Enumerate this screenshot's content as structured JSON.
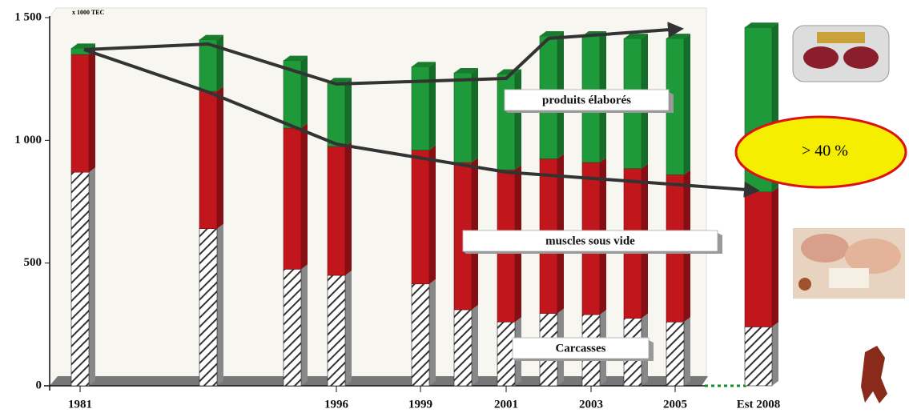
{
  "chart_data": {
    "type": "bar",
    "stacked": true,
    "y_label": "x 1000 TEC",
    "annotation": "> 40 %",
    "categories": [
      "1981",
      null,
      null,
      "1996",
      "1999",
      null,
      "2001",
      null,
      "2003",
      null,
      "2005",
      "Est 2008"
    ],
    "series": [
      {
        "name": "Carcasses",
        "color": "#333333",
        "values": [
          870,
          640,
          475,
          450,
          415,
          310,
          260,
          295,
          290,
          275,
          260,
          240
        ]
      },
      {
        "name": "muscles sous vide",
        "color": "#c0161c",
        "values": [
          480,
          560,
          575,
          525,
          545,
          600,
          620,
          630,
          620,
          610,
          600,
          550
        ]
      },
      {
        "name": "produits élaborés",
        "color": "#1f9a3a",
        "values": [
          25,
          210,
          275,
          260,
          340,
          365,
          390,
          500,
          515,
          530,
          555,
          670
        ]
      }
    ],
    "ylim": [
      0,
      1500
    ],
    "yticks": [
      0,
      500,
      {
        "value": 1000,
        "label": "1 000"
      },
      {
        "value": 1500,
        "label": "1 500"
      }
    ]
  }
}
